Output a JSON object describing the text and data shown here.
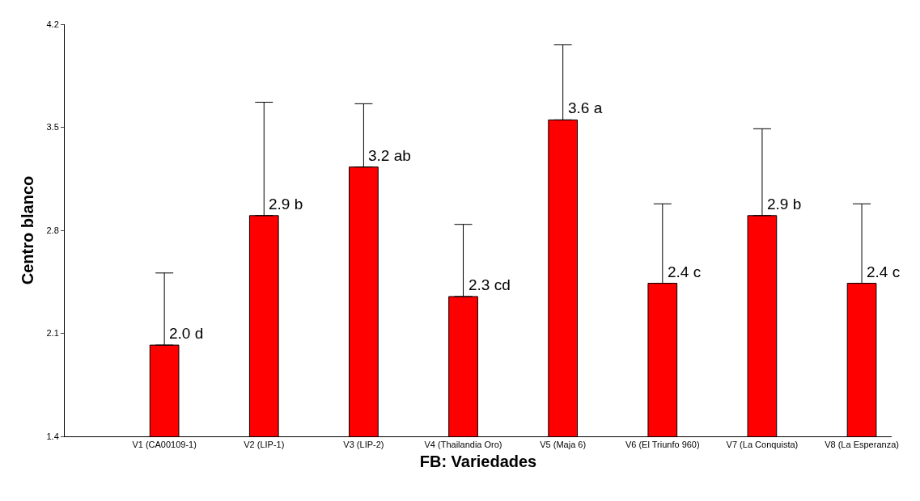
{
  "chart_data": {
    "type": "bar",
    "xlabel": "FB: Variedades",
    "ylabel": "Centro blanco",
    "categories": [
      "V1 (CA00109-1)",
      "V2 (LIP-1)",
      "V3 (LIP-2)",
      "V4 (Thailandia Oro)",
      "V5 (Maja 6)",
      "V6 (El Triunfo 960)",
      "V7 (La Conquista)",
      "V8 (La Esperanza)"
    ],
    "values": [
      2.02,
      2.9,
      3.23,
      2.35,
      3.55,
      2.44,
      2.9,
      2.44
    ],
    "errors": [
      [
        2.02,
        2.51
      ],
      [
        2.9,
        3.67
      ],
      [
        3.23,
        3.66
      ],
      [
        2.35,
        2.84
      ],
      [
        3.55,
        4.06
      ],
      [
        2.44,
        2.98
      ],
      [
        2.9,
        3.49
      ],
      [
        2.44,
        2.98
      ]
    ],
    "value_labels": [
      "2.0 d",
      "2.9 b",
      "3.2 ab",
      "2.3 cd",
      "3.6 a",
      "2.4 c",
      "2.9 b",
      "2.4 c"
    ],
    "color": "#ff0000",
    "ylim": [
      1.4,
      4.2
    ],
    "yticks": [
      1.4,
      2.1,
      2.8,
      3.5,
      4.2
    ]
  }
}
